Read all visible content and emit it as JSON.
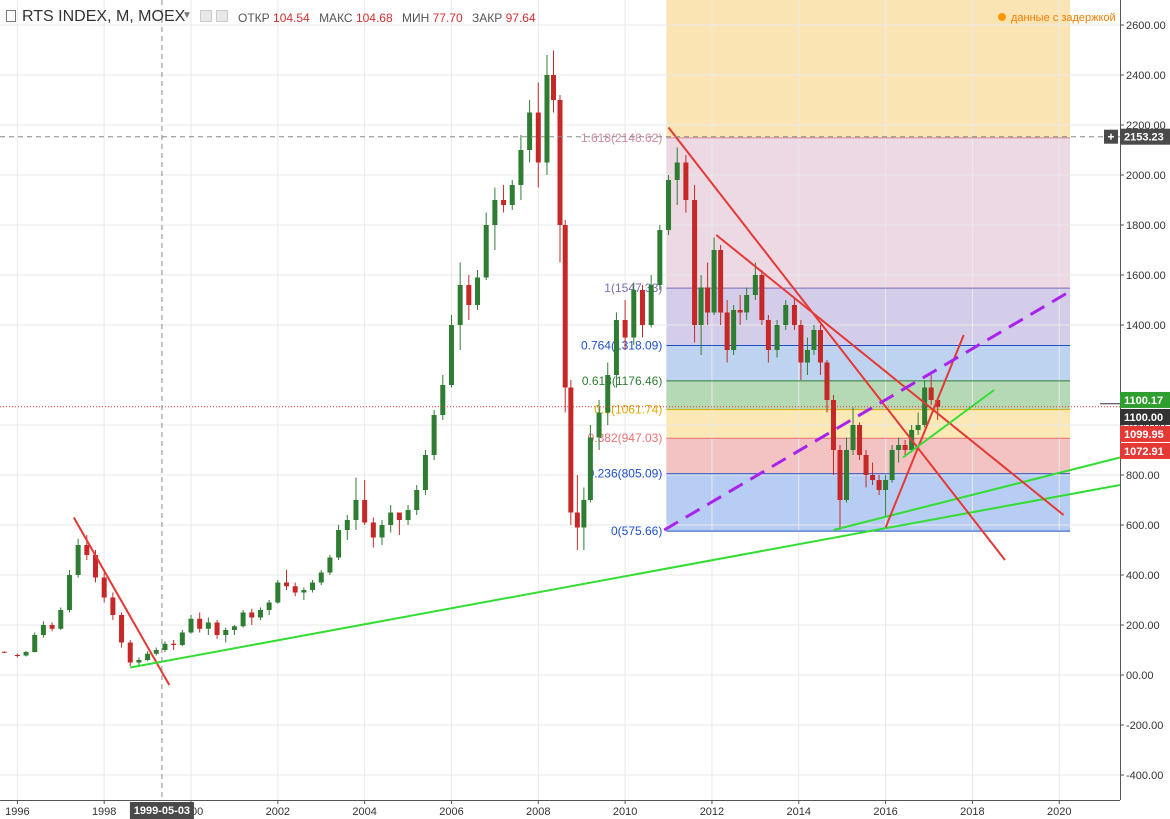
{
  "header": {
    "symbol": "RTS INDEX, M, MOEX",
    "open_label": "ОТКР",
    "open": "104.54",
    "high_label": "МАКС",
    "high": "104.68",
    "low_label": "МИН",
    "low": "77.70",
    "close_label": "ЗАКР",
    "close": "97.64",
    "delay_text": "данные с задержкой"
  },
  "colors": {
    "up": "#2e7d32",
    "down": "#c62828",
    "trend_red": "#e53935",
    "trend_green": "#33dd33",
    "dashed_purple": "#aa22ee"
  },
  "chart_data": {
    "type": "candlestick",
    "title": "RTS INDEX, M, MOEX",
    "x_range": [
      1995.6,
      2021.4
    ],
    "ylim": [
      -500,
      2700
    ],
    "x_ticks": [
      {
        "x": 1996,
        "label": "1996"
      },
      {
        "x": 1998,
        "label": "1998"
      },
      {
        "x": 2000,
        "label": "2000"
      },
      {
        "x": 2002,
        "label": "2002"
      },
      {
        "x": 2004,
        "label": "2004"
      },
      {
        "x": 2006,
        "label": "2006"
      },
      {
        "x": 2008,
        "label": "2008"
      },
      {
        "x": 2010,
        "label": "2010"
      },
      {
        "x": 2012,
        "label": "2012"
      },
      {
        "x": 2014,
        "label": "2014"
      },
      {
        "x": 2016,
        "label": "2016"
      },
      {
        "x": 2018,
        "label": "2018"
      },
      {
        "x": 2020,
        "label": "2020"
      }
    ],
    "y_ticks": [
      {
        "y": 2600,
        "label": "2600.00"
      },
      {
        "y": 2400,
        "label": "2400.00"
      },
      {
        "y": 2200,
        "label": "2200.00"
      },
      {
        "y": 2000,
        "label": "2000.00"
      },
      {
        "y": 1800,
        "label": "1800.00"
      },
      {
        "y": 1600,
        "label": "1600.00"
      },
      {
        "y": 1400,
        "label": "1400.00"
      },
      {
        "y": 1000,
        "label": "1000.00"
      },
      {
        "y": 800,
        "label": "800.00"
      },
      {
        "y": 600,
        "label": "600.00"
      },
      {
        "y": 400,
        "label": "400.00"
      },
      {
        "y": 200,
        "label": "200.00"
      },
      {
        "y": 0,
        "label": "00.00"
      },
      {
        "y": -200,
        "label": "-200.00"
      },
      {
        "y": -400,
        "label": "-400.00"
      }
    ],
    "cursor": {
      "x": 1999.33,
      "label": "1999-05-03",
      "y": 2153.23,
      "y_label": "2153.23"
    },
    "price_badges": [
      {
        "y": 1100.0,
        "label": "1100.00",
        "color": "#333333"
      },
      {
        "y": 1099.95,
        "label": "1099.95",
        "color": "#e53935"
      },
      {
        "y": 1100.17,
        "label": "1100.17",
        "color": "#2e9e2e"
      },
      {
        "y": 1072.91,
        "label": "1072.91",
        "color": "#e53935"
      }
    ],
    "last_price_line": 1072.91,
    "fibonacci": {
      "x_start": 2010.95,
      "x_end": 2020.25,
      "levels": [
        {
          "y": 575.66,
          "label": "0(575.66)",
          "color": "#1e50c8",
          "fill": "#b8cdf3"
        },
        {
          "y": 805.09,
          "label": "0.236(805.09)",
          "color": "#1e50c8",
          "fill": "#f3c3c3"
        },
        {
          "y": 947.03,
          "label": "0.382(947.03)",
          "color": "#e57373",
          "fill": "#fbe8b4"
        },
        {
          "y": 1061.74,
          "label": "0.5(1061.74)",
          "color": "#e0a800",
          "fill": "#b5d8b5"
        },
        {
          "y": 1176.46,
          "label": "0.618(1176.46)",
          "color": "#2e7d32",
          "fill": "#bed3f0"
        },
        {
          "y": 1318.09,
          "label": "0.764(1318.09)",
          "color": "#1e50c8",
          "fill": "#d4cde9"
        },
        {
          "y": 1547.33,
          "label": "1(1547.33)",
          "color": "#7e6bb5",
          "fill": "#ecd9e4"
        },
        {
          "y": 2148.62,
          "label": "1.618(2148.62)",
          "color": "#d48a9a",
          "fill": "#fbe4b4"
        }
      ],
      "top_fill_to": 2700
    },
    "trend_lines": [
      {
        "color": "red",
        "style": "solid",
        "from": [
          1997.3,
          630
        ],
        "to": [
          1999.5,
          -40
        ]
      },
      {
        "color": "green",
        "style": "solid",
        "from": [
          1998.6,
          30
        ],
        "to": [
          2021.4,
          760
        ]
      },
      {
        "color": "green",
        "style": "solid",
        "from": [
          2014.8,
          580
        ],
        "to": [
          2021.4,
          870
        ]
      },
      {
        "color": "red",
        "style": "solid",
        "from": [
          2011.0,
          2190
        ],
        "to": [
          2018.75,
          460
        ]
      },
      {
        "color": "red",
        "style": "solid",
        "from": [
          2012.1,
          1760
        ],
        "to": [
          2020.1,
          640
        ]
      },
      {
        "color": "red",
        "style": "solid",
        "from": [
          2016.0,
          590
        ],
        "to": [
          2017.8,
          1360
        ]
      },
      {
        "color": "green",
        "style": "solid",
        "from": [
          2016.4,
          870
        ],
        "to": [
          2018.5,
          1140
        ]
      },
      {
        "color": "purple",
        "style": "dashed",
        "from": [
          2010.9,
          580
        ],
        "to": [
          2020.3,
          1540
        ]
      }
    ],
    "candles": [
      [
        1995.7,
        93,
        95,
        88,
        90
      ],
      [
        1996.0,
        80,
        86,
        70,
        78
      ],
      [
        1996.2,
        78,
        96,
        74,
        92
      ],
      [
        1996.4,
        92,
        170,
        90,
        160
      ],
      [
        1996.6,
        160,
        215,
        150,
        200
      ],
      [
        1996.8,
        200,
        210,
        175,
        185
      ],
      [
        1997.0,
        185,
        270,
        180,
        260
      ],
      [
        1997.2,
        260,
        420,
        250,
        400
      ],
      [
        1997.4,
        400,
        545,
        390,
        520
      ],
      [
        1997.6,
        520,
        560,
        460,
        480
      ],
      [
        1997.8,
        480,
        500,
        370,
        390
      ],
      [
        1998.0,
        390,
        410,
        290,
        310
      ],
      [
        1998.2,
        310,
        330,
        220,
        240
      ],
      [
        1998.4,
        240,
        250,
        110,
        130
      ],
      [
        1998.6,
        130,
        140,
        35,
        50
      ],
      [
        1998.8,
        50,
        70,
        38,
        60
      ],
      [
        1999.0,
        60,
        95,
        55,
        85
      ],
      [
        1999.2,
        85,
        110,
        78,
        100
      ],
      [
        1999.4,
        100,
        135,
        92,
        125
      ],
      [
        1999.6,
        125,
        140,
        100,
        120
      ],
      [
        1999.8,
        120,
        180,
        115,
        170
      ],
      [
        2000.0,
        170,
        240,
        165,
        225
      ],
      [
        2000.2,
        225,
        250,
        170,
        185
      ],
      [
        2000.4,
        185,
        230,
        160,
        210
      ],
      [
        2000.6,
        210,
        220,
        145,
        160
      ],
      [
        2000.8,
        160,
        190,
        130,
        180
      ],
      [
        2001.0,
        180,
        200,
        160,
        195
      ],
      [
        2001.2,
        195,
        260,
        190,
        250
      ],
      [
        2001.4,
        250,
        265,
        200,
        230
      ],
      [
        2001.6,
        230,
        270,
        220,
        260
      ],
      [
        2001.8,
        260,
        300,
        240,
        290
      ],
      [
        2002.0,
        290,
        380,
        285,
        370
      ],
      [
        2002.2,
        370,
        420,
        340,
        355
      ],
      [
        2002.4,
        355,
        370,
        315,
        330
      ],
      [
        2002.6,
        330,
        350,
        300,
        340
      ],
      [
        2002.8,
        340,
        380,
        330,
        370
      ],
      [
        2003.0,
        370,
        420,
        360,
        410
      ],
      [
        2003.2,
        410,
        480,
        400,
        470
      ],
      [
        2003.4,
        470,
        600,
        460,
        580
      ],
      [
        2003.6,
        580,
        640,
        540,
        620
      ],
      [
        2003.8,
        620,
        790,
        580,
        700
      ],
      [
        2004.0,
        700,
        780,
        600,
        610
      ],
      [
        2004.2,
        610,
        630,
        510,
        550
      ],
      [
        2004.4,
        550,
        620,
        520,
        600
      ],
      [
        2004.6,
        600,
        680,
        570,
        650
      ],
      [
        2004.8,
        650,
        650,
        560,
        620
      ],
      [
        2005.0,
        620,
        680,
        600,
        660
      ],
      [
        2005.2,
        660,
        760,
        640,
        740
      ],
      [
        2005.4,
        740,
        900,
        720,
        880
      ],
      [
        2005.6,
        880,
        1060,
        860,
        1040
      ],
      [
        2005.8,
        1040,
        1200,
        1020,
        1160
      ],
      [
        2006.0,
        1160,
        1440,
        1150,
        1400
      ],
      [
        2006.2,
        1400,
        1650,
        1300,
        1560
      ],
      [
        2006.4,
        1560,
        1600,
        1420,
        1480
      ],
      [
        2006.6,
        1480,
        1620,
        1460,
        1590
      ],
      [
        2006.8,
        1590,
        1850,
        1580,
        1800
      ],
      [
        2007.0,
        1800,
        1950,
        1700,
        1900
      ],
      [
        2007.2,
        1900,
        1960,
        1850,
        1880
      ],
      [
        2007.4,
        1880,
        1980,
        1860,
        1960
      ],
      [
        2007.6,
        1960,
        2160,
        1900,
        2100
      ],
      [
        2007.8,
        2100,
        2300,
        2050,
        2250
      ],
      [
        2008.0,
        2250,
        2370,
        1950,
        2050
      ],
      [
        2008.2,
        2050,
        2480,
        2000,
        2400
      ],
      [
        2008.35,
        2400,
        2498,
        2250,
        2300
      ],
      [
        2008.5,
        2300,
        2320,
        1650,
        1800
      ],
      [
        2008.62,
        1800,
        1820,
        1050,
        1150
      ],
      [
        2008.75,
        1150,
        1180,
        600,
        650
      ],
      [
        2008.9,
        650,
        800,
        500,
        590
      ],
      [
        2009.05,
        590,
        750,
        500,
        700
      ],
      [
        2009.2,
        700,
        1000,
        690,
        950
      ],
      [
        2009.4,
        950,
        1100,
        900,
        1050
      ],
      [
        2009.6,
        1050,
        1250,
        1000,
        1200
      ],
      [
        2009.8,
        1200,
        1450,
        1150,
        1420
      ],
      [
        2010.0,
        1420,
        1500,
        1300,
        1350
      ],
      [
        2010.2,
        1350,
        1570,
        1320,
        1540
      ],
      [
        2010.4,
        1540,
        1560,
        1350,
        1400
      ],
      [
        2010.6,
        1400,
        1600,
        1390,
        1560
      ],
      [
        2010.8,
        1560,
        1800,
        1540,
        1780
      ],
      [
        2011.0,
        1780,
        2000,
        1760,
        1980
      ],
      [
        2011.2,
        1980,
        2110,
        1880,
        2050
      ],
      [
        2011.4,
        2050,
        2080,
        1850,
        1900
      ],
      [
        2011.6,
        1900,
        1960,
        1330,
        1400
      ],
      [
        2011.75,
        1400,
        1600,
        1280,
        1550
      ],
      [
        2011.9,
        1550,
        1650,
        1400,
        1450
      ],
      [
        2012.05,
        1450,
        1750,
        1440,
        1700
      ],
      [
        2012.2,
        1700,
        1720,
        1400,
        1450
      ],
      [
        2012.35,
        1450,
        1500,
        1250,
        1300
      ],
      [
        2012.5,
        1300,
        1480,
        1280,
        1460
      ],
      [
        2012.65,
        1460,
        1520,
        1400,
        1450
      ],
      [
        2012.8,
        1450,
        1550,
        1420,
        1520
      ],
      [
        2013.0,
        1520,
        1650,
        1500,
        1600
      ],
      [
        2013.15,
        1600,
        1620,
        1400,
        1420
      ],
      [
        2013.3,
        1420,
        1440,
        1250,
        1300
      ],
      [
        2013.5,
        1300,
        1420,
        1270,
        1400
      ],
      [
        2013.7,
        1400,
        1500,
        1380,
        1480
      ],
      [
        2013.9,
        1480,
        1510,
        1380,
        1400
      ],
      [
        2014.05,
        1400,
        1420,
        1180,
        1250
      ],
      [
        2014.2,
        1250,
        1350,
        1200,
        1300
      ],
      [
        2014.35,
        1300,
        1400,
        1280,
        1380
      ],
      [
        2014.5,
        1380,
        1400,
        1200,
        1250
      ],
      [
        2014.65,
        1250,
        1260,
        1050,
        1100
      ],
      [
        2014.8,
        1100,
        1120,
        800,
        900
      ],
      [
        2014.95,
        900,
        920,
        580,
        700
      ],
      [
        2015.1,
        700,
        950,
        690,
        900
      ],
      [
        2015.25,
        900,
        1070,
        880,
        1000
      ],
      [
        2015.4,
        1000,
        1010,
        860,
        880
      ],
      [
        2015.55,
        880,
        900,
        750,
        800
      ],
      [
        2015.7,
        800,
        850,
        760,
        780
      ],
      [
        2015.85,
        780,
        800,
        720,
        740
      ],
      [
        2016.0,
        740,
        800,
        630,
        780
      ],
      [
        2016.15,
        780,
        920,
        770,
        900
      ],
      [
        2016.3,
        900,
        950,
        850,
        920
      ],
      [
        2016.45,
        920,
        940,
        880,
        900
      ],
      [
        2016.6,
        900,
        1000,
        890,
        980
      ],
      [
        2016.75,
        980,
        1050,
        960,
        1000
      ],
      [
        2016.9,
        1000,
        1180,
        990,
        1150
      ],
      [
        2017.05,
        1150,
        1200,
        1080,
        1100
      ],
      [
        2017.2,
        1100,
        1110,
        1020,
        1073
      ]
    ]
  }
}
